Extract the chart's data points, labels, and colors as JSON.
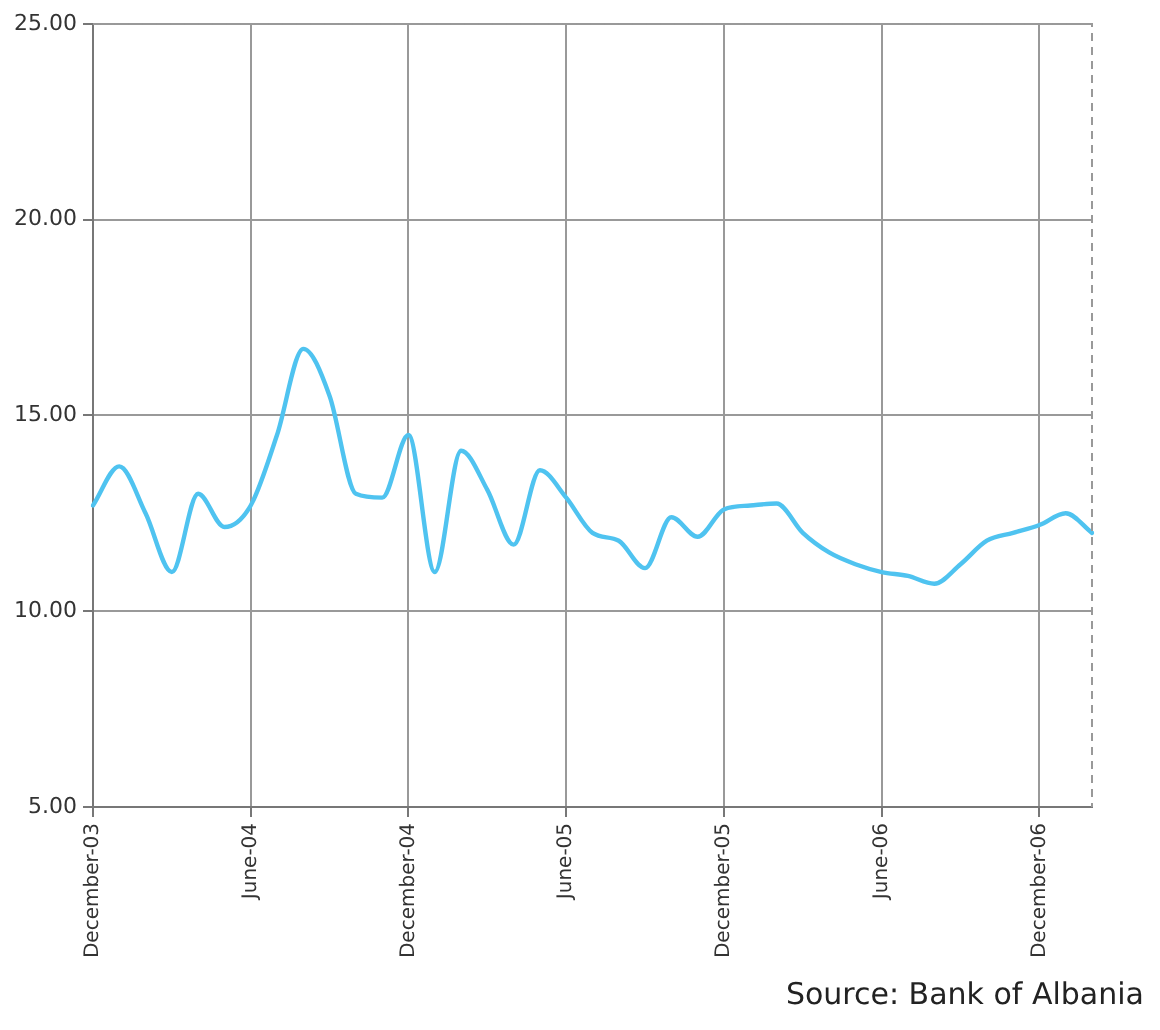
{
  "chart_data": {
    "type": "line",
    "categories": [
      "December-03",
      null,
      null,
      null,
      null,
      null,
      "June-04",
      null,
      null,
      null,
      null,
      null,
      "December-04",
      null,
      null,
      null,
      null,
      null,
      "June-05",
      null,
      null,
      null,
      null,
      null,
      "December-05",
      null,
      null,
      null,
      null,
      null,
      "June-06",
      null,
      null,
      null,
      null,
      null,
      "December-06",
      null,
      null
    ],
    "series": [
      {
        "color": "#4fc3f0",
        "values": [
          12.7,
          13.7,
          12.5,
          11.0,
          13.0,
          12.15,
          12.7,
          14.5,
          16.7,
          15.5,
          13.0,
          12.9,
          14.5,
          11.0,
          14.1,
          13.1,
          11.7,
          13.6,
          12.9,
          12.0,
          11.8,
          11.1,
          12.4,
          11.9,
          12.6,
          12.7,
          12.75,
          12.0,
          11.5,
          11.2,
          11.0,
          10.9,
          10.7,
          11.2,
          11.8,
          12.0,
          12.2,
          12.5,
          12.0
        ]
      }
    ],
    "ylim": [
      5,
      25
    ],
    "yticks": [
      {
        "value": 5,
        "label": "5.00"
      },
      {
        "value": 10,
        "label": "10.00"
      },
      {
        "value": 15,
        "label": "15.00"
      },
      {
        "value": 20,
        "label": "20.00"
      },
      {
        "value": 25,
        "label": "25.00"
      }
    ],
    "grid": true,
    "legend": false,
    "marker": "none",
    "line_style": "solid",
    "annotations": [
      "Source: Bank of Albania"
    ]
  }
}
